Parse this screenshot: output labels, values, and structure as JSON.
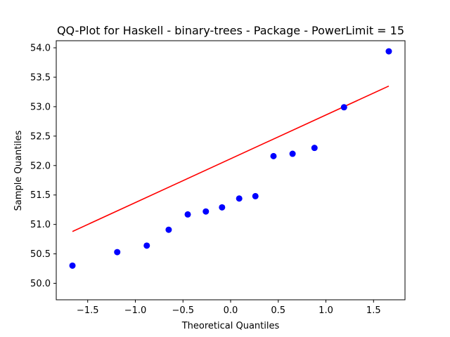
{
  "chart_data": {
    "type": "scatter",
    "title": "QQ-Plot for Haskell - binary-trees - Package - PowerLimit = 15",
    "xlabel": "Theoretical Quantiles",
    "ylabel": "Sample Quantiles",
    "xlim": [
      -1.83,
      1.83
    ],
    "ylim": [
      49.72,
      54.12
    ],
    "grid": false,
    "x_ticks": [
      -1.5,
      -1.0,
      -0.5,
      0.0,
      0.5,
      1.0,
      1.5
    ],
    "x_tick_labels": [
      "−1.5",
      "−1.0",
      "−0.5",
      "0.0",
      "0.5",
      "1.0",
      "1.5"
    ],
    "y_ticks": [
      50.0,
      50.5,
      51.0,
      51.5,
      52.0,
      52.5,
      53.0,
      53.5,
      54.0
    ],
    "y_tick_labels": [
      "50.0",
      "50.5",
      "51.0",
      "51.5",
      "52.0",
      "52.5",
      "53.0",
      "53.5",
      "54.0"
    ],
    "series": [
      {
        "name": "sample",
        "kind": "points",
        "color": "#0000ff",
        "x": [
          -1.66,
          -1.19,
          -0.88,
          -0.65,
          -0.45,
          -0.26,
          -0.09,
          0.09,
          0.26,
          0.45,
          0.65,
          0.88,
          1.19,
          1.66
        ],
        "y": [
          50.3,
          50.53,
          50.64,
          50.91,
          51.17,
          51.22,
          51.29,
          51.44,
          51.48,
          52.16,
          52.2,
          52.3,
          52.99,
          53.94
        ]
      },
      {
        "name": "reference-line",
        "kind": "line",
        "color": "#ff0000",
        "x": [
          -1.66,
          1.66
        ],
        "y": [
          50.88,
          53.35
        ]
      }
    ]
  }
}
